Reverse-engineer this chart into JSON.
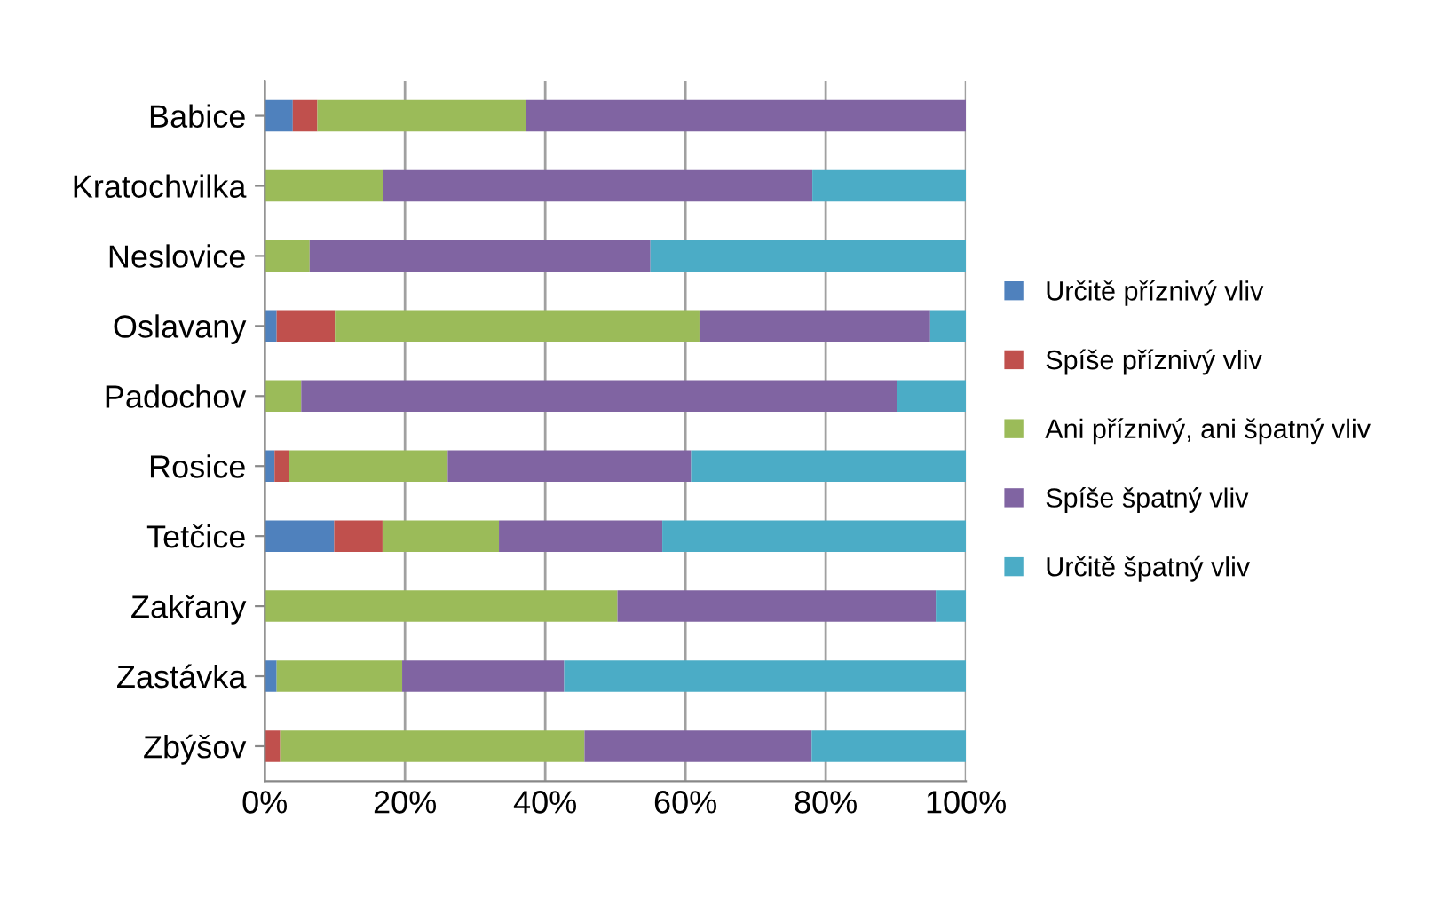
{
  "chart_data": {
    "type": "bar",
    "orientation": "horizontal",
    "stacked": true,
    "categories": [
      "Babice",
      "Kratochvilka",
      "Neslovice",
      "Oslavany",
      "Padochov",
      "Rosice",
      "Tetčice",
      "Zakřany",
      "Zastávka",
      "Zbýšov"
    ],
    "series": [
      {
        "name": "Určitě příznivý vliv",
        "color": "#4f81bd",
        "values": [
          4,
          0,
          0,
          1.7,
          0,
          1.4,
          9.9,
          0,
          1.7,
          0
        ]
      },
      {
        "name": "Spíše příznivý vliv",
        "color": "#c0504d",
        "values": [
          3.5,
          0,
          0,
          8.3,
          0,
          2.1,
          6.9,
          0,
          0,
          2.2
        ]
      },
      {
        "name": "Ani příznivý, ani špatný vliv",
        "color": "#9bbb59",
        "values": [
          29.8,
          16.9,
          6.4,
          52,
          5.2,
          22.6,
          16.6,
          50.3,
          17.9,
          43.4
        ]
      },
      {
        "name": "Spíše špatný vliv",
        "color": "#8064a2",
        "values": [
          62.7,
          61.2,
          48.6,
          32.9,
          85,
          34.7,
          23.3,
          45.4,
          23.1,
          32.4
        ]
      },
      {
        "name": "Určitě špatný vliv",
        "color": "#4bacc6",
        "values": [
          0,
          21.9,
          45,
          5.1,
          9.8,
          39.2,
          43.3,
          4.3,
          57.3,
          22
        ]
      }
    ],
    "xlim": [
      0,
      100
    ],
    "xticks": [
      {
        "value": 0,
        "label": "0%"
      },
      {
        "value": 20,
        "label": "20%"
      },
      {
        "value": 40,
        "label": "40%"
      },
      {
        "value": 60,
        "label": "60%"
      },
      {
        "value": 80,
        "label": "80%"
      },
      {
        "value": 100,
        "label": "100%"
      }
    ],
    "grid": "x",
    "legend": "right"
  }
}
